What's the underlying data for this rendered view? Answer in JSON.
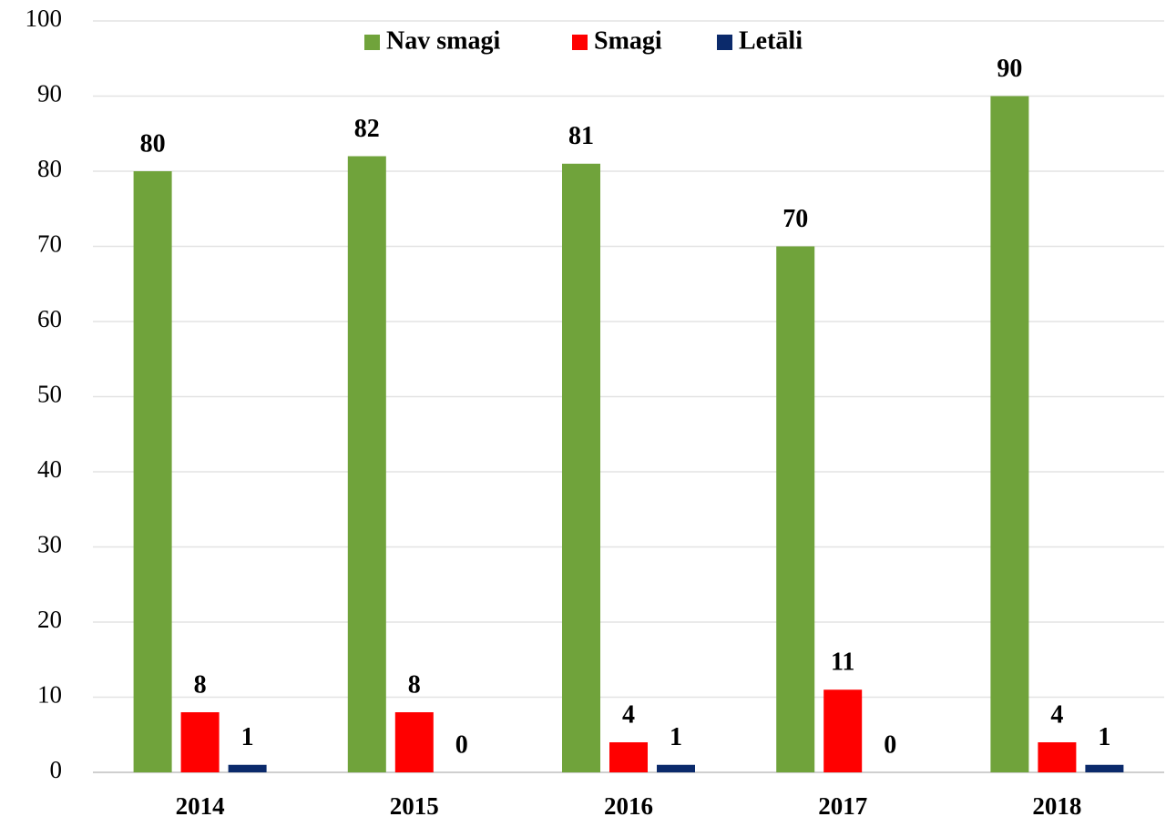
{
  "chart_data": {
    "type": "bar",
    "categories": [
      "2014",
      "2015",
      "2016",
      "2017",
      "2018"
    ],
    "series": [
      {
        "name": "Nav smagi",
        "color": "#70a33b",
        "values": [
          80,
          82,
          81,
          70,
          90
        ]
      },
      {
        "name": "Smagi",
        "color": "#ff0000",
        "values": [
          8,
          8,
          4,
          11,
          4
        ]
      },
      {
        "name": "Letāli",
        "color": "#0b2a6b",
        "values": [
          1,
          0,
          1,
          0,
          1
        ]
      }
    ],
    "ylim": [
      0,
      100
    ],
    "yticks": [
      0,
      10,
      20,
      30,
      40,
      50,
      60,
      70,
      80,
      90,
      100
    ],
    "grid": true,
    "legend": "top"
  }
}
